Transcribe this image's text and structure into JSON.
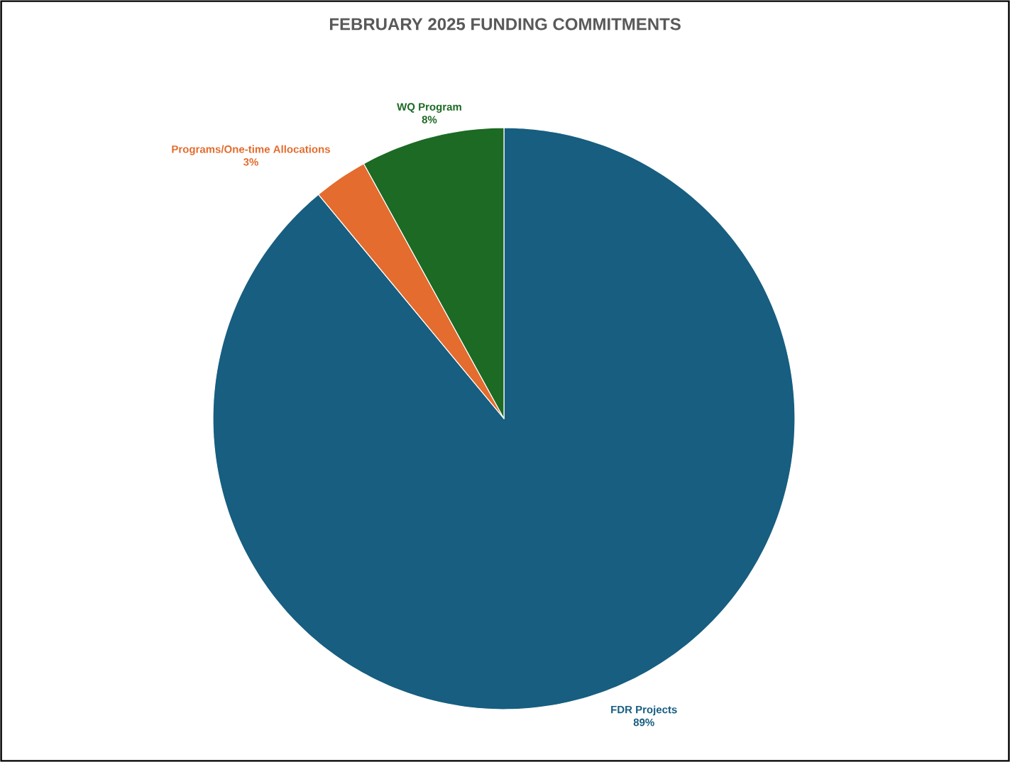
{
  "chart_data": {
    "type": "pie",
    "title": "FEBRUARY 2025 FUNDING COMMITMENTS",
    "categories": [
      "FDR Projects",
      "Programs/One-time Allocations",
      "WQ Program"
    ],
    "values": [
      89,
      3,
      8
    ],
    "value_labels": [
      "89%",
      "3%",
      "8%"
    ],
    "colors": [
      "#175e80",
      "#e36c2e",
      "#1c6a23"
    ]
  }
}
